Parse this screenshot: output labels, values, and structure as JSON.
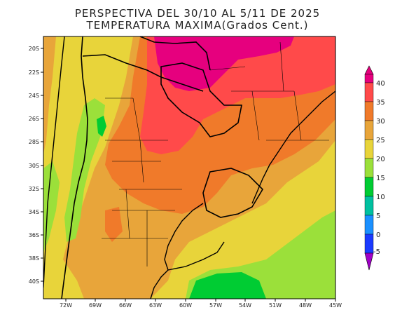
{
  "title": {
    "line1": "PERSPECTIVA DEL 30/10 AL 5/11 DE 2025",
    "line2": "TEMPERATURA MAXIMA(Grados Cent.)"
  },
  "axes": {
    "lat_labels": [
      "20S",
      "22S",
      "24S",
      "26S",
      "28S",
      "30S",
      "32S",
      "34S",
      "36S",
      "38S",
      "40S"
    ],
    "lon_labels": [
      "72W",
      "69W",
      "66W",
      "63W",
      "60W",
      "57W",
      "54W",
      "51W",
      "48W",
      "45W"
    ]
  },
  "colorbar": {
    "labels": [
      "40",
      "35",
      "30",
      "25",
      "20",
      "15",
      "10",
      "5",
      "0",
      "-5"
    ],
    "colors": [
      "#e6007e",
      "#ff4a4a",
      "#f07a2a",
      "#e8a53a",
      "#e8d43a",
      "#9be03a",
      "#00cc33",
      "#00c0a0",
      "#1a90ff",
      "#1a3aff",
      "#a000c8"
    ]
  },
  "palette": {
    "magenta": "#e6007e",
    "red": "#ff4a4a",
    "orange": "#f07a2a",
    "amber": "#e8a53a",
    "yellow": "#e8d43a",
    "lightgreen": "#9be03a",
    "green": "#00cc33",
    "border": "#000000"
  }
}
